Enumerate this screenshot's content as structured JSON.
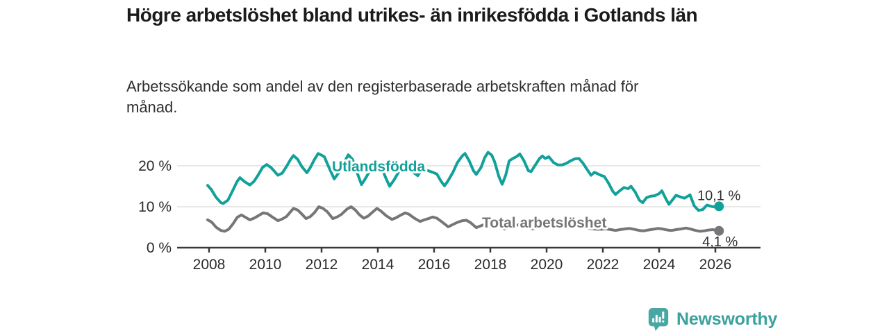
{
  "header": {
    "title": "Högre arbetslöshet bland utrikes- än inrikesfödda i Gotlands län",
    "subtitle": "Arbetssökande som andel av den registerbaserade arbetskraften månad för månad."
  },
  "footer": {
    "brand": "Newsworthy"
  },
  "colors": {
    "series_teal": "#12a19a",
    "series_gray": "#76767a",
    "axis": "#3a3a3a",
    "grid": "#e0e0e0",
    "tick_text": "#2b2b2e",
    "value_text": "#2f2f31",
    "title_text": "#1b1b1d",
    "logo_teal": "#48a7a3",
    "wordmark_teal": "#3ba19c"
  },
  "chart_data": {
    "type": "line",
    "title": "Högre arbetslöshet bland utrikes- än inrikesfödda i Gotlands län",
    "subtitle": "Arbetssökande som andel av den registerbaserade arbetskraften månad för månad.",
    "unit": "%",
    "legend_position": "inline-series-labels",
    "grid": "horizontal lines at 10 % and 20 %",
    "x_axis": {
      "tick_labels": [
        "2008",
        "2010",
        "2012",
        "2014",
        "2016",
        "2018",
        "2020",
        "2022",
        "2024",
        "2026"
      ],
      "range": [
        2007.6,
        2026.8
      ]
    },
    "y_axis": {
      "tick_labels": [
        "0 %",
        "10 %",
        "20 %"
      ],
      "tick_values": [
        0,
        10,
        20
      ],
      "range": [
        0,
        24
      ]
    },
    "series": [
      {
        "name": "Utlandsfödda",
        "color": "#12a19a",
        "end_label": "10,1 %",
        "end_value": 10.1,
        "points": [
          [
            2007.95,
            15.2
          ],
          [
            2008.08,
            14.2
          ],
          [
            2008.25,
            12.3
          ],
          [
            2008.42,
            11.0
          ],
          [
            2008.5,
            10.8
          ],
          [
            2008.67,
            11.6
          ],
          [
            2008.83,
            13.8
          ],
          [
            2009.0,
            16.2
          ],
          [
            2009.1,
            17.1
          ],
          [
            2009.25,
            16.2
          ],
          [
            2009.45,
            15.3
          ],
          [
            2009.6,
            16.2
          ],
          [
            2009.75,
            17.8
          ],
          [
            2009.9,
            19.6
          ],
          [
            2010.05,
            20.3
          ],
          [
            2010.2,
            19.6
          ],
          [
            2010.45,
            17.7
          ],
          [
            2010.6,
            18.2
          ],
          [
            2010.75,
            19.8
          ],
          [
            2010.9,
            21.6
          ],
          [
            2011.0,
            22.5
          ],
          [
            2011.15,
            21.6
          ],
          [
            2011.3,
            19.8
          ],
          [
            2011.48,
            18.3
          ],
          [
            2011.6,
            19.6
          ],
          [
            2011.75,
            21.6
          ],
          [
            2011.88,
            23.0
          ],
          [
            2012.0,
            22.6
          ],
          [
            2012.1,
            22.2
          ],
          [
            2012.25,
            19.8
          ],
          [
            2012.45,
            16.8
          ],
          [
            2012.6,
            18.2
          ],
          [
            2012.75,
            20.2
          ],
          [
            2012.95,
            22.7
          ],
          [
            2013.1,
            21.6
          ],
          [
            2013.25,
            18.6
          ],
          [
            2013.42,
            15.4
          ],
          [
            2013.55,
            16.8
          ],
          [
            2013.7,
            18.6
          ],
          [
            2013.85,
            20.2
          ],
          [
            2014.0,
            20.8
          ],
          [
            2014.15,
            19.2
          ],
          [
            2014.3,
            16.8
          ],
          [
            2014.42,
            15.0
          ],
          [
            2014.58,
            16.6
          ],
          [
            2014.75,
            18.6
          ],
          [
            2014.9,
            20.2
          ],
          [
            2015.0,
            20.6
          ],
          [
            2015.15,
            19.6
          ],
          [
            2015.3,
            18.2
          ],
          [
            2015.42,
            17.6
          ],
          [
            2015.5,
            18.4
          ],
          [
            2015.65,
            18.9
          ],
          [
            2015.8,
            18.8
          ],
          [
            2015.95,
            18.4
          ],
          [
            2016.1,
            18.0
          ],
          [
            2016.25,
            16.2
          ],
          [
            2016.37,
            15.1
          ],
          [
            2016.5,
            16.4
          ],
          [
            2016.67,
            18.4
          ],
          [
            2016.83,
            20.8
          ],
          [
            2017.0,
            22.4
          ],
          [
            2017.1,
            23.0
          ],
          [
            2017.25,
            21.2
          ],
          [
            2017.4,
            18.8
          ],
          [
            2017.5,
            17.9
          ],
          [
            2017.67,
            19.6
          ],
          [
            2017.8,
            22.0
          ],
          [
            2017.92,
            23.3
          ],
          [
            2018.05,
            22.6
          ],
          [
            2018.15,
            21.0
          ],
          [
            2018.3,
            17.5
          ],
          [
            2018.42,
            15.5
          ],
          [
            2018.55,
            17.8
          ],
          [
            2018.67,
            21.2
          ],
          [
            2018.8,
            21.8
          ],
          [
            2018.92,
            22.2
          ],
          [
            2019.05,
            22.9
          ],
          [
            2019.2,
            21.2
          ],
          [
            2019.35,
            18.8
          ],
          [
            2019.45,
            18.6
          ],
          [
            2019.6,
            20.2
          ],
          [
            2019.75,
            21.8
          ],
          [
            2019.85,
            22.4
          ],
          [
            2019.95,
            21.8
          ],
          [
            2020.08,
            22.2
          ],
          [
            2020.25,
            20.8
          ],
          [
            2020.4,
            20.2
          ],
          [
            2020.55,
            20.2
          ],
          [
            2020.7,
            20.6
          ],
          [
            2020.85,
            21.2
          ],
          [
            2021.0,
            21.7
          ],
          [
            2021.15,
            21.8
          ],
          [
            2021.3,
            20.6
          ],
          [
            2021.45,
            19.0
          ],
          [
            2021.58,
            17.7
          ],
          [
            2021.7,
            18.4
          ],
          [
            2021.8,
            18.1
          ],
          [
            2021.92,
            17.7
          ],
          [
            2022.05,
            17.4
          ],
          [
            2022.2,
            15.8
          ],
          [
            2022.35,
            13.8
          ],
          [
            2022.45,
            13.0
          ],
          [
            2022.6,
            13.9
          ],
          [
            2022.75,
            14.7
          ],
          [
            2022.9,
            14.4
          ],
          [
            2023.0,
            15.0
          ],
          [
            2023.15,
            13.6
          ],
          [
            2023.3,
            11.6
          ],
          [
            2023.42,
            11.0
          ],
          [
            2023.55,
            12.2
          ],
          [
            2023.7,
            12.6
          ],
          [
            2023.85,
            12.7
          ],
          [
            2024.0,
            13.2
          ],
          [
            2024.1,
            13.9
          ],
          [
            2024.25,
            11.8
          ],
          [
            2024.35,
            10.6
          ],
          [
            2024.5,
            11.9
          ],
          [
            2024.6,
            12.8
          ],
          [
            2024.75,
            12.4
          ],
          [
            2024.9,
            12.1
          ],
          [
            2025.0,
            12.5
          ],
          [
            2025.1,
            12.9
          ],
          [
            2025.25,
            10.2
          ],
          [
            2025.4,
            9.1
          ],
          [
            2025.55,
            9.3
          ],
          [
            2025.7,
            10.4
          ],
          [
            2025.85,
            10.1
          ],
          [
            2026.0,
            9.9
          ],
          [
            2026.13,
            10.1
          ]
        ]
      },
      {
        "name": "Total arbetslöshet",
        "color": "#76767a",
        "end_label": "4,1 %",
        "end_value": 4.1,
        "points": [
          [
            2007.95,
            6.8
          ],
          [
            2008.1,
            6.2
          ],
          [
            2008.25,
            5.0
          ],
          [
            2008.42,
            4.2
          ],
          [
            2008.55,
            4.0
          ],
          [
            2008.7,
            4.5
          ],
          [
            2008.85,
            5.8
          ],
          [
            2009.0,
            7.4
          ],
          [
            2009.15,
            8.0
          ],
          [
            2009.3,
            7.4
          ],
          [
            2009.45,
            6.8
          ],
          [
            2009.6,
            7.2
          ],
          [
            2009.75,
            7.8
          ],
          [
            2009.92,
            8.5
          ],
          [
            2010.08,
            8.3
          ],
          [
            2010.25,
            7.5
          ],
          [
            2010.45,
            6.6
          ],
          [
            2010.6,
            7.0
          ],
          [
            2010.75,
            7.6
          ],
          [
            2010.9,
            8.8
          ],
          [
            2011.0,
            9.6
          ],
          [
            2011.15,
            9.2
          ],
          [
            2011.3,
            8.2
          ],
          [
            2011.45,
            7.1
          ],
          [
            2011.6,
            7.6
          ],
          [
            2011.75,
            8.6
          ],
          [
            2011.9,
            10.0
          ],
          [
            2012.05,
            9.6
          ],
          [
            2012.2,
            8.8
          ],
          [
            2012.4,
            7.1
          ],
          [
            2012.55,
            7.5
          ],
          [
            2012.7,
            8.1
          ],
          [
            2012.9,
            9.4
          ],
          [
            2013.05,
            10.0
          ],
          [
            2013.2,
            9.2
          ],
          [
            2013.35,
            8.0
          ],
          [
            2013.5,
            7.2
          ],
          [
            2013.65,
            7.7
          ],
          [
            2013.8,
            8.6
          ],
          [
            2013.97,
            9.6
          ],
          [
            2014.1,
            9.0
          ],
          [
            2014.3,
            7.8
          ],
          [
            2014.5,
            6.9
          ],
          [
            2014.65,
            7.3
          ],
          [
            2014.8,
            7.9
          ],
          [
            2014.97,
            8.5
          ],
          [
            2015.1,
            8.2
          ],
          [
            2015.3,
            7.2
          ],
          [
            2015.5,
            6.4
          ],
          [
            2015.65,
            6.8
          ],
          [
            2015.8,
            7.1
          ],
          [
            2015.95,
            7.5
          ],
          [
            2016.1,
            7.2
          ],
          [
            2016.3,
            6.2
          ],
          [
            2016.5,
            5.1
          ],
          [
            2016.65,
            5.6
          ],
          [
            2016.8,
            6.1
          ],
          [
            2017.0,
            6.6
          ],
          [
            2017.15,
            6.7
          ],
          [
            2017.3,
            6.1
          ],
          [
            2017.5,
            4.9
          ],
          [
            2017.65,
            5.3
          ],
          [
            2017.8,
            5.7
          ],
          [
            2018.0,
            6.1
          ],
          [
            2018.15,
            5.8
          ],
          [
            2018.35,
            5.1
          ],
          [
            2018.5,
            4.6
          ],
          [
            2018.65,
            4.9
          ],
          [
            2018.8,
            5.2
          ],
          [
            2019.0,
            5.6
          ],
          [
            2019.15,
            5.4
          ],
          [
            2019.35,
            4.9
          ],
          [
            2019.5,
            4.6
          ],
          [
            2019.65,
            4.8
          ],
          [
            2019.8,
            5.0
          ],
          [
            2020.0,
            5.3
          ],
          [
            2020.2,
            5.6
          ],
          [
            2020.4,
            5.9
          ],
          [
            2020.55,
            5.8
          ],
          [
            2020.7,
            5.7
          ],
          [
            2020.9,
            5.5
          ],
          [
            2021.05,
            5.3
          ],
          [
            2021.25,
            5.0
          ],
          [
            2021.45,
            4.8
          ],
          [
            2021.6,
            4.6
          ],
          [
            2021.8,
            4.5
          ],
          [
            2021.95,
            4.5
          ],
          [
            2022.1,
            4.6
          ],
          [
            2022.3,
            4.4
          ],
          [
            2022.45,
            4.2
          ],
          [
            2022.6,
            4.4
          ],
          [
            2022.8,
            4.6
          ],
          [
            2022.95,
            4.7
          ],
          [
            2023.1,
            4.5
          ],
          [
            2023.3,
            4.2
          ],
          [
            2023.45,
            4.1
          ],
          [
            2023.6,
            4.3
          ],
          [
            2023.8,
            4.5
          ],
          [
            2023.95,
            4.7
          ],
          [
            2024.1,
            4.6
          ],
          [
            2024.3,
            4.3
          ],
          [
            2024.45,
            4.2
          ],
          [
            2024.6,
            4.4
          ],
          [
            2024.8,
            4.6
          ],
          [
            2024.95,
            4.8
          ],
          [
            2025.1,
            4.6
          ],
          [
            2025.3,
            4.2
          ],
          [
            2025.45,
            4.0
          ],
          [
            2025.6,
            4.1
          ],
          [
            2025.75,
            4.3
          ],
          [
            2025.9,
            4.4
          ],
          [
            2026.0,
            4.3
          ],
          [
            2026.13,
            4.1
          ]
        ]
      }
    ]
  }
}
